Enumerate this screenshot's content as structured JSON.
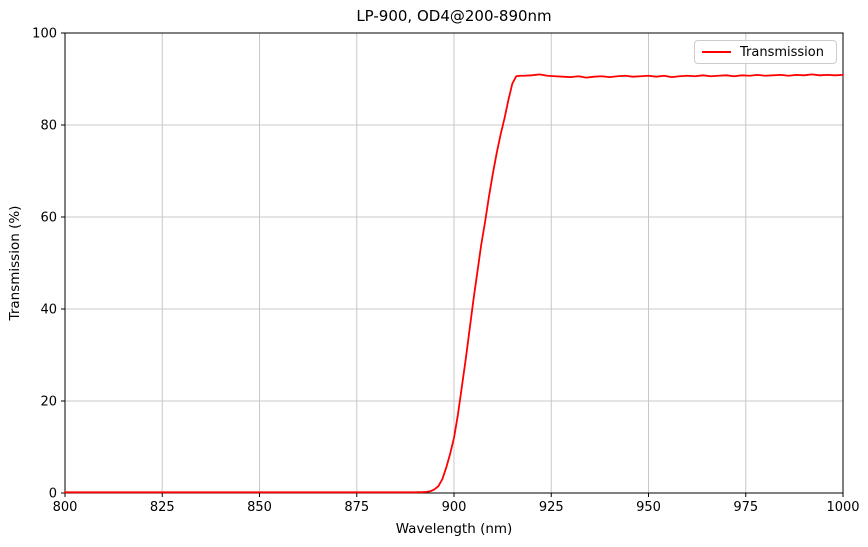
{
  "window": {
    "background": "#ffffff"
  },
  "chart_data": {
    "type": "line",
    "title": "LP-900, OD4@200-890nm",
    "xlabel": "Wavelength (nm)",
    "ylabel": "Transmission (%)",
    "xlim": [
      800,
      1000
    ],
    "ylim": [
      0,
      100
    ],
    "xticks": [
      800,
      825,
      850,
      875,
      900,
      925,
      950,
      975,
      1000
    ],
    "yticks": [
      0,
      20,
      40,
      60,
      80,
      100
    ],
    "grid": true,
    "legend": {
      "position": "upper-right",
      "label": "Transmission"
    },
    "colors": {
      "line": "#ff0000",
      "grid": "#c8c8c8",
      "spine": "#000000",
      "tick_text": "#000000",
      "legend_border": "#cccccc"
    },
    "series": [
      {
        "name": "Transmission",
        "color": "#ff0000",
        "points": [
          [
            800,
            0.15
          ],
          [
            810,
            0.15
          ],
          [
            820,
            0.15
          ],
          [
            830,
            0.15
          ],
          [
            840,
            0.15
          ],
          [
            850,
            0.15
          ],
          [
            860,
            0.15
          ],
          [
            870,
            0.15
          ],
          [
            880,
            0.15
          ],
          [
            885,
            0.15
          ],
          [
            890,
            0.15
          ],
          [
            892,
            0.2
          ],
          [
            893,
            0.25
          ],
          [
            894,
            0.4
          ],
          [
            895,
            0.8
          ],
          [
            896,
            1.5
          ],
          [
            897,
            3.0
          ],
          [
            898,
            5.5
          ],
          [
            899,
            8.5
          ],
          [
            900,
            12.0
          ],
          [
            901,
            17.0
          ],
          [
            902,
            23.0
          ],
          [
            903,
            29.0
          ],
          [
            904,
            35.5
          ],
          [
            905,
            42.0
          ],
          [
            906,
            48.0
          ],
          [
            907,
            54.0
          ],
          [
            908,
            59.0
          ],
          [
            909,
            64.5
          ],
          [
            910,
            69.5
          ],
          [
            911,
            74.0
          ],
          [
            912,
            78.0
          ],
          [
            913,
            81.5
          ],
          [
            914,
            85.5
          ],
          [
            915,
            89.0
          ],
          [
            916,
            90.6
          ],
          [
            917,
            90.7
          ],
          [
            918,
            90.7
          ],
          [
            920,
            90.8
          ],
          [
            922,
            91.0
          ],
          [
            924,
            90.7
          ],
          [
            926,
            90.6
          ],
          [
            928,
            90.5
          ],
          [
            930,
            90.4
          ],
          [
            932,
            90.6
          ],
          [
            934,
            90.3
          ],
          [
            936,
            90.5
          ],
          [
            938,
            90.6
          ],
          [
            940,
            90.4
          ],
          [
            942,
            90.6
          ],
          [
            944,
            90.7
          ],
          [
            946,
            90.5
          ],
          [
            948,
            90.6
          ],
          [
            950,
            90.7
          ],
          [
            952,
            90.5
          ],
          [
            954,
            90.7
          ],
          [
            956,
            90.4
          ],
          [
            958,
            90.6
          ],
          [
            960,
            90.7
          ],
          [
            962,
            90.6
          ],
          [
            964,
            90.8
          ],
          [
            966,
            90.6
          ],
          [
            968,
            90.7
          ],
          [
            970,
            90.8
          ],
          [
            972,
            90.6
          ],
          [
            974,
            90.8
          ],
          [
            976,
            90.7
          ],
          [
            978,
            90.9
          ],
          [
            980,
            90.7
          ],
          [
            982,
            90.8
          ],
          [
            984,
            90.9
          ],
          [
            986,
            90.7
          ],
          [
            988,
            90.9
          ],
          [
            990,
            90.8
          ],
          [
            992,
            91.0
          ],
          [
            994,
            90.8
          ],
          [
            996,
            90.9
          ],
          [
            998,
            90.8
          ],
          [
            1000,
            90.9
          ]
        ]
      }
    ]
  }
}
